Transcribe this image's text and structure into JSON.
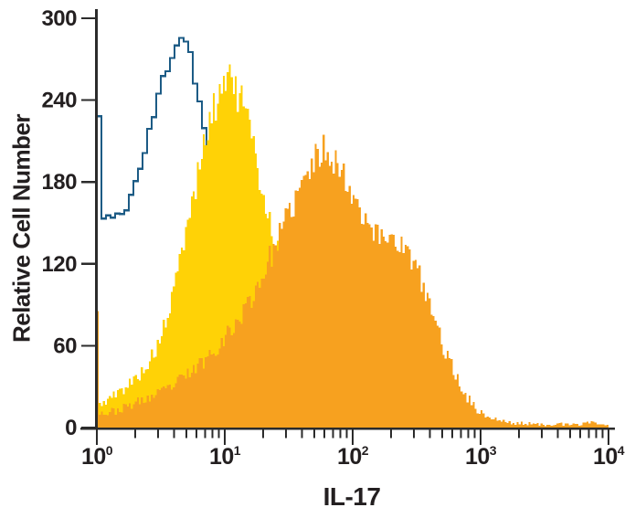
{
  "page": {
    "background": "#ffffff"
  },
  "chart_data": {
    "type": "area",
    "subtype": "flow-cytometry-overlay-histogram",
    "xlabel": "IL-17",
    "ylabel": "Relative Cell Number",
    "x_scale": "log10",
    "xlim": [
      1,
      10000
    ],
    "ylim": [
      0,
      300
    ],
    "y_ticks": [
      0,
      60,
      120,
      180,
      240,
      300
    ],
    "x_ticks": [
      {
        "base": "10",
        "exponent": "0"
      },
      {
        "base": "10",
        "exponent": "1"
      },
      {
        "base": "10",
        "exponent": "2"
      },
      {
        "base": "10",
        "exponent": "3"
      },
      {
        "base": "10",
        "exponent": "4"
      }
    ],
    "x_minor_ticks_per_decade": [
      2,
      3,
      4,
      5,
      6,
      7,
      8,
      9
    ],
    "grid": false,
    "legend": false,
    "axis_color": "#2b2b2b",
    "text_color": "#231f20",
    "series": [
      {
        "name": "open-blue-outline-histogram",
        "draw_style": "outline",
        "color": "#1c5b85",
        "stroke_width": 2.3,
        "bins_per_decade": 28,
        "noise": 0.45,
        "seed": 11,
        "envelope": [
          [
            1.0,
            228
          ],
          [
            1.048,
            228
          ],
          [
            1.052,
            160
          ],
          [
            1.12,
            152
          ],
          [
            1.2,
            158
          ],
          [
            1.28,
            148
          ],
          [
            1.38,
            157
          ],
          [
            1.5,
            150
          ],
          [
            1.62,
            160
          ],
          [
            1.75,
            166
          ],
          [
            1.9,
            172
          ],
          [
            2.1,
            185
          ],
          [
            2.35,
            200
          ],
          [
            2.6,
            216
          ],
          [
            2.9,
            235
          ],
          [
            3.2,
            251
          ],
          [
            3.6,
            267
          ],
          [
            4.0,
            279
          ],
          [
            4.35,
            286
          ],
          [
            4.75,
            288
          ],
          [
            5.1,
            283
          ],
          [
            5.5,
            271
          ],
          [
            5.9,
            256
          ],
          [
            6.3,
            240
          ],
          [
            6.8,
            222
          ],
          [
            7.3,
            206
          ],
          [
            7.8,
            185
          ],
          [
            8.5,
            140
          ],
          [
            9.5,
            80
          ],
          [
            10.5,
            30
          ],
          [
            11.5,
            8
          ],
          [
            12.0,
            2
          ]
        ]
      },
      {
        "name": "filled-yellow-histogram",
        "draw_style": "filled",
        "color": "#ffd206",
        "bins_per_decade": 64,
        "noise": 0.8,
        "seed": 5,
        "envelope": [
          [
            1.0,
            24
          ],
          [
            1.036,
            24
          ],
          [
            1.042,
            16
          ],
          [
            1.15,
            19
          ],
          [
            1.35,
            23
          ],
          [
            1.6,
            28
          ],
          [
            1.9,
            34
          ],
          [
            2.2,
            40
          ],
          [
            2.6,
            49
          ],
          [
            3.0,
            60
          ],
          [
            3.5,
            78
          ],
          [
            4.0,
            100
          ],
          [
            4.5,
            124
          ],
          [
            5.0,
            146
          ],
          [
            5.5,
            163
          ],
          [
            6.0,
            180
          ],
          [
            6.6,
            200
          ],
          [
            7.2,
            215
          ],
          [
            8.0,
            230
          ],
          [
            8.8,
            241
          ],
          [
            9.6,
            251
          ],
          [
            10.3,
            259
          ],
          [
            10.45,
            262
          ],
          [
            10.55,
            272
          ],
          [
            10.7,
            262
          ],
          [
            11.2,
            258
          ],
          [
            11.8,
            250
          ],
          [
            12.6,
            243
          ],
          [
            13.3,
            238
          ],
          [
            14.0,
            242
          ],
          [
            14.8,
            230
          ],
          [
            16.0,
            213
          ],
          [
            17.5,
            196
          ],
          [
            19.0,
            180
          ],
          [
            21.0,
            163
          ],
          [
            23.5,
            146
          ],
          [
            26.0,
            131
          ],
          [
            29.0,
            115
          ],
          [
            33.0,
            97
          ],
          [
            38.0,
            79
          ],
          [
            44.0,
            63
          ],
          [
            52.0,
            49
          ],
          [
            62.0,
            37
          ],
          [
            75.0,
            27
          ],
          [
            92.0,
            19
          ],
          [
            115.0,
            13
          ],
          [
            150.0,
            9
          ],
          [
            200.0,
            6
          ],
          [
            300.0,
            4
          ],
          [
            500.0,
            2
          ],
          [
            900.0,
            1
          ],
          [
            2000.0,
            1
          ],
          [
            5000.0,
            0
          ],
          [
            10000.0,
            0
          ]
        ]
      },
      {
        "name": "filled-orange-histogram",
        "draw_style": "filled",
        "color": "#f7a11f",
        "bins_per_decade": 64,
        "noise": 0.85,
        "seed": 23,
        "envelope": [
          [
            1.0,
            92
          ],
          [
            1.036,
            92
          ],
          [
            1.042,
            12
          ],
          [
            1.15,
            10
          ],
          [
            1.35,
            12
          ],
          [
            1.6,
            14
          ],
          [
            1.9,
            17
          ],
          [
            2.3,
            20
          ],
          [
            2.8,
            23
          ],
          [
            3.4,
            27
          ],
          [
            4.1,
            32
          ],
          [
            5.0,
            38
          ],
          [
            6.0,
            44
          ],
          [
            7.2,
            51
          ],
          [
            8.6,
            59
          ],
          [
            10.0,
            66
          ],
          [
            12.0,
            75
          ],
          [
            14.5,
            87
          ],
          [
            17.0,
            99
          ],
          [
            20.0,
            113
          ],
          [
            23.5,
            128
          ],
          [
            27.0,
            141
          ],
          [
            31.0,
            154
          ],
          [
            36.0,
            168
          ],
          [
            42.0,
            181
          ],
          [
            48.0,
            192
          ],
          [
            54.0,
            200
          ],
          [
            60.0,
            205
          ],
          [
            67.0,
            202
          ],
          [
            75.0,
            194
          ],
          [
            85.0,
            184
          ],
          [
            95.0,
            176
          ],
          [
            108.0,
            166
          ],
          [
            122.0,
            157
          ],
          [
            138.0,
            148
          ],
          [
            158.0,
            140
          ],
          [
            180.0,
            139
          ],
          [
            200.0,
            143
          ],
          [
            220.0,
            138
          ],
          [
            250.0,
            132
          ],
          [
            285.0,
            124
          ],
          [
            325.0,
            113
          ],
          [
            370.0,
            99
          ],
          [
            420.0,
            84
          ],
          [
            470.0,
            70
          ],
          [
            530.0,
            56
          ],
          [
            600.0,
            44
          ],
          [
            680.0,
            33
          ],
          [
            770.0,
            24
          ],
          [
            880.0,
            16
          ],
          [
            1000.0,
            11
          ],
          [
            1200.0,
            7
          ],
          [
            1450.0,
            5
          ],
          [
            1800.0,
            3
          ],
          [
            2300.0,
            3
          ],
          [
            3000.0,
            2
          ],
          [
            3800.0,
            3
          ],
          [
            4800.0,
            2
          ],
          [
            6000.0,
            2
          ],
          [
            7300.0,
            5
          ],
          [
            8200.0,
            3
          ],
          [
            9200.0,
            2
          ],
          [
            10000.0,
            1
          ]
        ]
      }
    ]
  }
}
